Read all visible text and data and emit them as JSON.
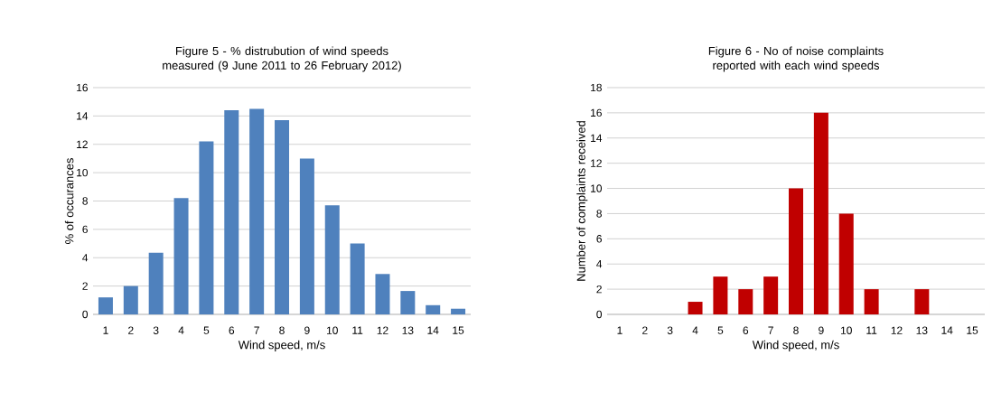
{
  "chart_data": [
    {
      "type": "bar",
      "title": "Figure 5 - % distrubution of wind speeds measured (9 June 2011 to 26 February 2012)",
      "xlabel": "Wind speed, m/s",
      "ylabel": "% of occurances",
      "categories": [
        "1",
        "2",
        "3",
        "4",
        "5",
        "6",
        "7",
        "8",
        "9",
        "10",
        "11",
        "12",
        "13",
        "14",
        "15"
      ],
      "values": [
        1.2,
        2.0,
        4.35,
        8.2,
        12.2,
        14.4,
        14.5,
        13.7,
        11.0,
        7.7,
        5.0,
        2.85,
        1.65,
        0.65,
        0.4
      ],
      "color": "#4f81bd",
      "ylim": [
        0,
        16
      ],
      "yticks": [
        0,
        2,
        4,
        6,
        8,
        10,
        12,
        14,
        16
      ],
      "grid": "y"
    },
    {
      "type": "bar",
      "title": "Figure 6 - No of noise complaints reported with each wind speeds",
      "xlabel": "Wind speed, m/s",
      "ylabel": "Number of complaints received",
      "categories": [
        "1",
        "2",
        "3",
        "4",
        "5",
        "6",
        "7",
        "8",
        "9",
        "10",
        "11",
        "12",
        "13",
        "14",
        "15"
      ],
      "values": [
        0,
        0,
        0,
        1,
        3,
        2,
        3,
        10,
        16,
        8,
        2,
        0,
        2,
        0,
        0
      ],
      "color": "#c00000",
      "ylim": [
        0,
        18
      ],
      "yticks": [
        0,
        2,
        4,
        6,
        8,
        10,
        12,
        14,
        16,
        18
      ],
      "grid": "y"
    }
  ]
}
